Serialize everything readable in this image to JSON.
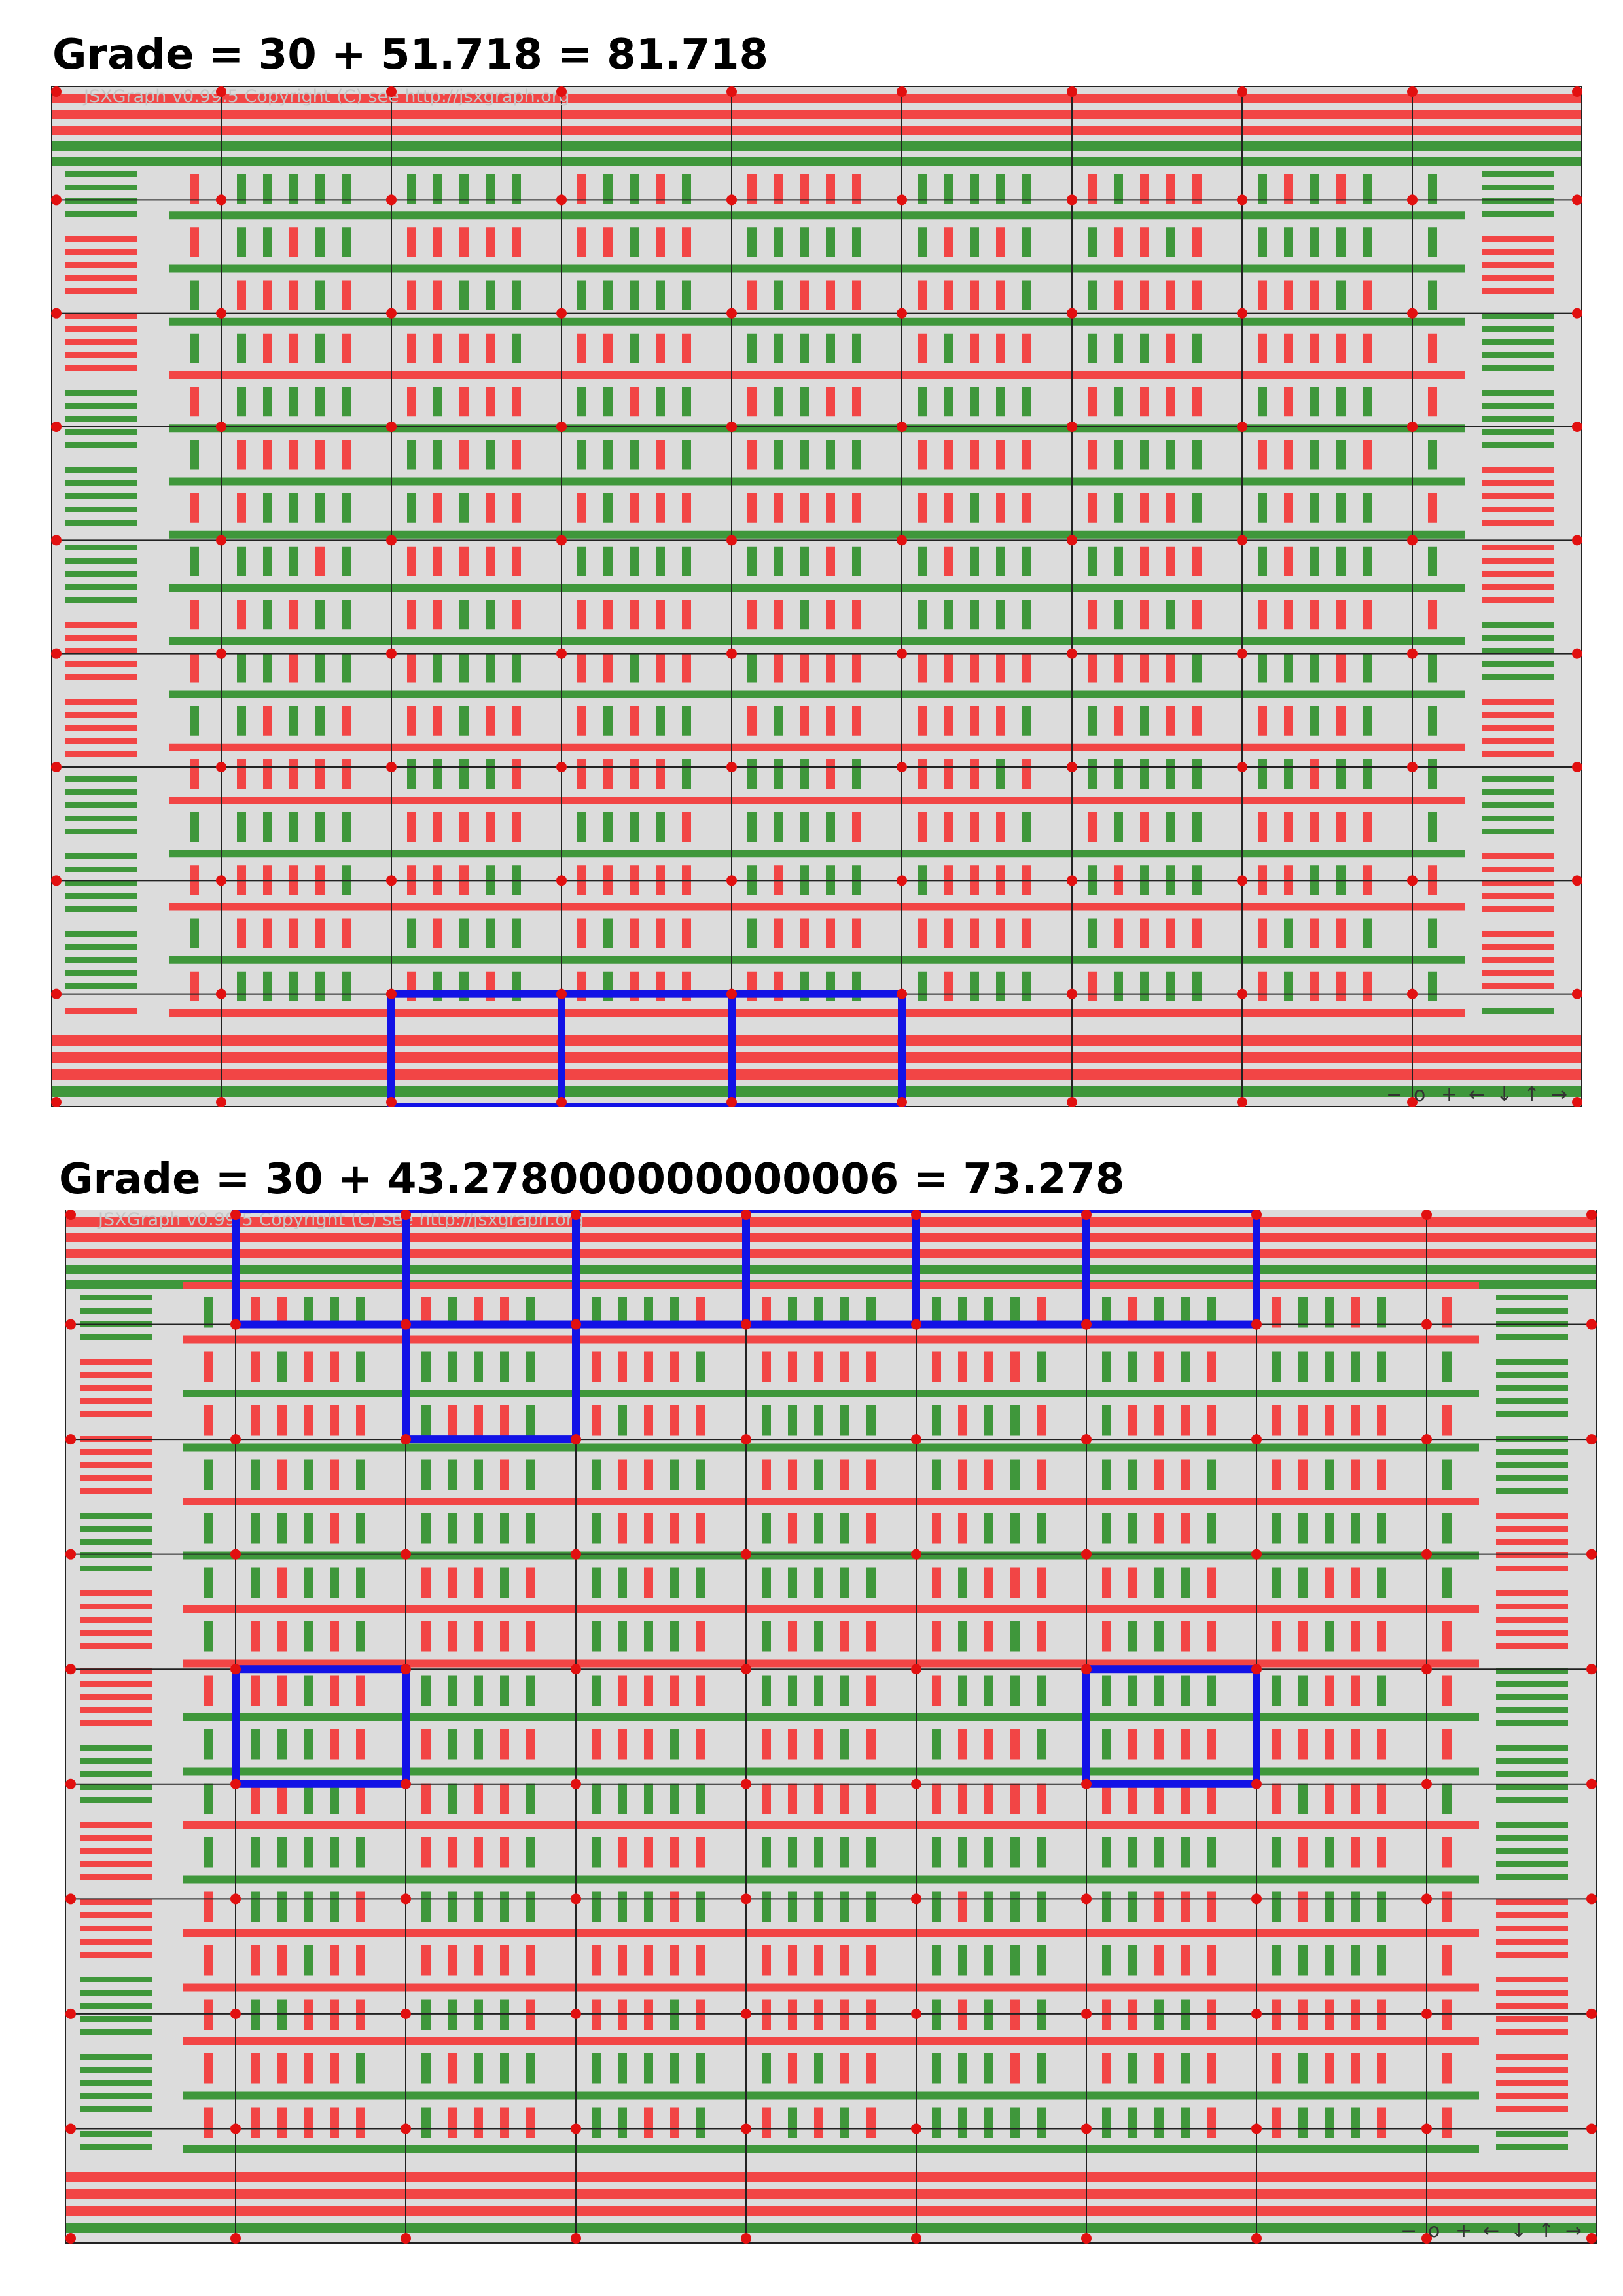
{
  "panels": [
    {
      "title": "Grade = 30 + 51.718 = 81.718",
      "watermark": "JSXGraph v0.99.5 Copyright (C) see http://jsxgraph.org",
      "navbar": [
        "−",
        "o",
        "+",
        "←",
        "↓",
        "↑",
        "→"
      ],
      "grid_columns": 9,
      "grid_rows": 9,
      "selected_cells": [
        [
          2,
          8
        ],
        [
          3,
          8
        ],
        [
          4,
          8
        ]
      ]
    },
    {
      "title": "Grade = 30 + 43.278000000000006 = 73.278",
      "watermark": "JSXGraph v0.99.5 Copyright (C) see http://jsxgraph.org",
      "navbar": [
        "−",
        "o",
        "+",
        "←",
        "↓",
        "↑",
        "→"
      ],
      "grid_columns": 9,
      "grid_rows": 9,
      "selected_cells": [
        [
          1,
          0
        ],
        [
          2,
          0
        ],
        [
          3,
          0
        ],
        [
          4,
          0
        ],
        [
          5,
          0
        ],
        [
          6,
          0
        ],
        [
          2,
          1
        ],
        [
          1,
          4
        ],
        [
          6,
          4
        ]
      ]
    }
  ],
  "colors": {
    "red": "#f24545",
    "green": "#3f973b",
    "background": "#dcdcdc",
    "grid_line": "#222222",
    "grid_point": "#e21010",
    "selection": "#1212e6"
  }
}
